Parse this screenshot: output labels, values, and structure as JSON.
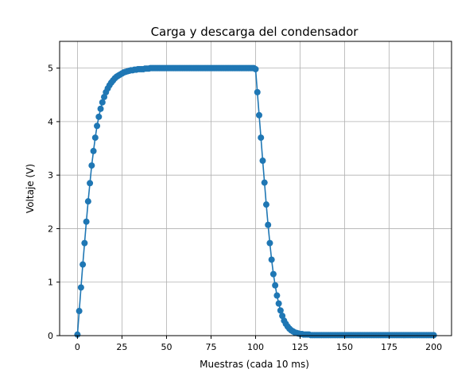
{
  "chart_data": {
    "type": "line",
    "title": "Carga y descarga del condensador",
    "xlabel": "Muestras (cada 10 ms)",
    "ylabel": "Voltaje (V)",
    "series": [
      {
        "name": "Voltaje",
        "color": "#1f77b4",
        "x": [
          0,
          1,
          2,
          3,
          4,
          5,
          6,
          7,
          8,
          9,
          10,
          11,
          12,
          13,
          14,
          15,
          16,
          17,
          18,
          19,
          20,
          21,
          22,
          23,
          24,
          25,
          26,
          27,
          28,
          29,
          30,
          31,
          32,
          33,
          34,
          35,
          36,
          37,
          38,
          39,
          40,
          41,
          42,
          43,
          44,
          45,
          46,
          47,
          48,
          49,
          50,
          51,
          52,
          53,
          54,
          55,
          56,
          57,
          58,
          59,
          60,
          61,
          62,
          63,
          64,
          65,
          66,
          67,
          68,
          69,
          70,
          71,
          72,
          73,
          74,
          75,
          76,
          77,
          78,
          79,
          80,
          81,
          82,
          83,
          84,
          85,
          86,
          87,
          88,
          89,
          90,
          91,
          92,
          93,
          94,
          95,
          96,
          97,
          98,
          99,
          100,
          101,
          102,
          103,
          104,
          105,
          106,
          107,
          108,
          109,
          110,
          111,
          112,
          113,
          114,
          115,
          116,
          117,
          118,
          119,
          120,
          121,
          122,
          123,
          124,
          125,
          126,
          127,
          128,
          129,
          130,
          131,
          132,
          133,
          134,
          135,
          136,
          137,
          138,
          139,
          140,
          141,
          142,
          143,
          144,
          145,
          146,
          147,
          148,
          149,
          150,
          151,
          152,
          153,
          154,
          155,
          156,
          157,
          158,
          159,
          160,
          161,
          162,
          163,
          164,
          165,
          166,
          167,
          168,
          169,
          170,
          171,
          172,
          173,
          174,
          175,
          176,
          177,
          178,
          179,
          180,
          181,
          182,
          183,
          184,
          185,
          186,
          187,
          188,
          189,
          190,
          191,
          192,
          193,
          194,
          195,
          196,
          197,
          198,
          199,
          200
        ],
        "values": [
          0.02,
          0.46,
          0.9,
          1.33,
          1.73,
          2.13,
          2.51,
          2.85,
          3.18,
          3.45,
          3.7,
          3.92,
          4.09,
          4.24,
          4.36,
          4.46,
          4.55,
          4.62,
          4.68,
          4.73,
          4.77,
          4.81,
          4.84,
          4.86,
          4.88,
          4.9,
          4.92,
          4.93,
          4.94,
          4.95,
          4.96,
          4.96,
          4.97,
          4.97,
          4.98,
          4.98,
          4.98,
          4.98,
          4.99,
          4.99,
          4.99,
          5,
          5,
          5,
          5,
          5,
          5,
          5,
          5,
          5,
          5,
          5,
          5,
          5,
          5,
          5,
          5,
          5,
          5,
          5,
          5,
          5,
          5,
          5,
          5,
          5,
          5,
          5,
          5,
          5,
          5,
          5,
          5,
          5,
          5,
          5,
          5,
          5,
          5,
          5,
          5,
          5,
          5,
          5,
          5,
          5,
          5,
          5,
          5,
          5,
          5,
          5,
          5,
          5,
          5,
          5,
          5,
          5,
          5,
          5,
          4.98,
          4.55,
          4.12,
          3.7,
          3.27,
          2.86,
          2.45,
          2.07,
          1.73,
          1.42,
          1.15,
          0.94,
          0.75,
          0.6,
          0.47,
          0.37,
          0.28,
          0.22,
          0.17,
          0.13,
          0.1,
          0.08,
          0.06,
          0.05,
          0.04,
          0.03,
          0.03,
          0.02,
          0.02,
          0.02,
          0.02,
          0.01,
          0.01,
          0.01,
          0.01,
          0.01,
          0.01,
          0.01,
          0.01,
          0.01,
          0.01,
          0.01,
          0.01,
          0.01,
          0.01,
          0.01,
          0.01,
          0.01,
          0.01,
          0.01,
          0.01,
          0.01,
          0.01,
          0.01,
          0.01,
          0.01,
          0.01,
          0.01,
          0.01,
          0.01,
          0.01,
          0.01,
          0.01,
          0.01,
          0.01,
          0.01,
          0.01,
          0.01,
          0.01,
          0.01,
          0.01,
          0.01,
          0.01,
          0.01,
          0.01,
          0.01,
          0.01,
          0.01,
          0.01,
          0.01,
          0.01,
          0.01,
          0.01,
          0.01,
          0.01,
          0.01,
          0.01,
          0.01,
          0.01,
          0.01,
          0.01,
          0.01,
          0.01,
          0.01,
          0.01,
          0.01,
          0.01,
          0.01,
          0.01,
          0.01,
          0.01
        ]
      }
    ],
    "xlim": [
      -10,
      210
    ],
    "xticks": [
      0,
      25,
      50,
      75,
      100,
      125,
      150,
      175,
      200
    ],
    "ylim": [
      0,
      5.5
    ],
    "yticks": [
      0,
      1,
      2,
      3,
      4,
      5
    ],
    "grid": true,
    "markers": true
  }
}
